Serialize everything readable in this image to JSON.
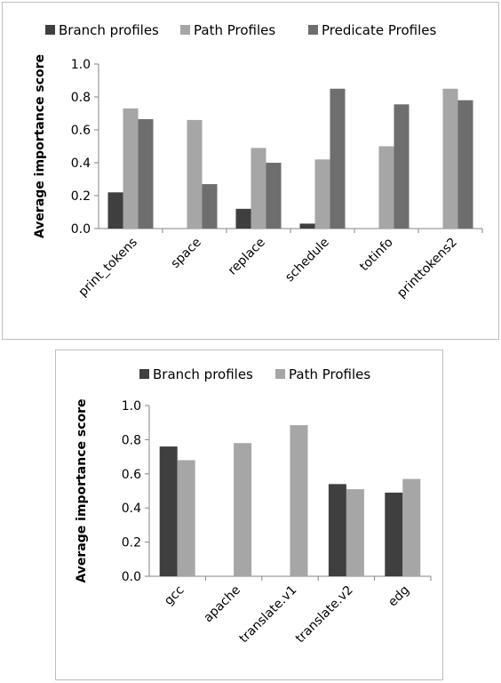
{
  "chart_data": [
    {
      "type": "bar",
      "title": "",
      "xlabel": "",
      "ylabel": "Average importance score",
      "ylim": [
        0,
        1.0
      ],
      "yticks": [
        "0.0",
        "0.2",
        "0.4",
        "0.6",
        "0.8",
        "1.0"
      ],
      "grid": false,
      "legend": "top",
      "categories": [
        "print_tokens",
        "space",
        "replace",
        "schedule",
        "totinfo",
        "printtokens2"
      ],
      "series": [
        {
          "name": "Branch profiles",
          "color": "#3f3f3f",
          "values": [
            0.22,
            0,
            0.12,
            0.03,
            0,
            0
          ]
        },
        {
          "name": "Path Profiles",
          "color": "#a6a6a6",
          "values": [
            0.73,
            0.66,
            0.49,
            0.42,
            0.5,
            0.85
          ]
        },
        {
          "name": "Predicate Profiles",
          "color": "#6e6e6e",
          "values": [
            0.665,
            0.27,
            0.4,
            0.85,
            0.755,
            0.78
          ]
        }
      ]
    },
    {
      "type": "bar",
      "title": "",
      "xlabel": "",
      "ylabel": "Average importance score",
      "ylim": [
        0,
        1.0
      ],
      "yticks": [
        "0.0",
        "0.2",
        "0.4",
        "0.6",
        "0.8",
        "1.0"
      ],
      "grid": false,
      "legend": "top",
      "categories": [
        "gcc",
        "apache",
        "translate.v1",
        "translate.v2",
        "edg"
      ],
      "series": [
        {
          "name": "Branch profiles",
          "color": "#3f3f3f",
          "values": [
            0.76,
            0,
            0,
            0.54,
            0.49
          ]
        },
        {
          "name": "Path Profiles",
          "color": "#a6a6a6",
          "values": [
            0.68,
            0.78,
            0.885,
            0.51,
            0.57
          ]
        }
      ]
    }
  ]
}
